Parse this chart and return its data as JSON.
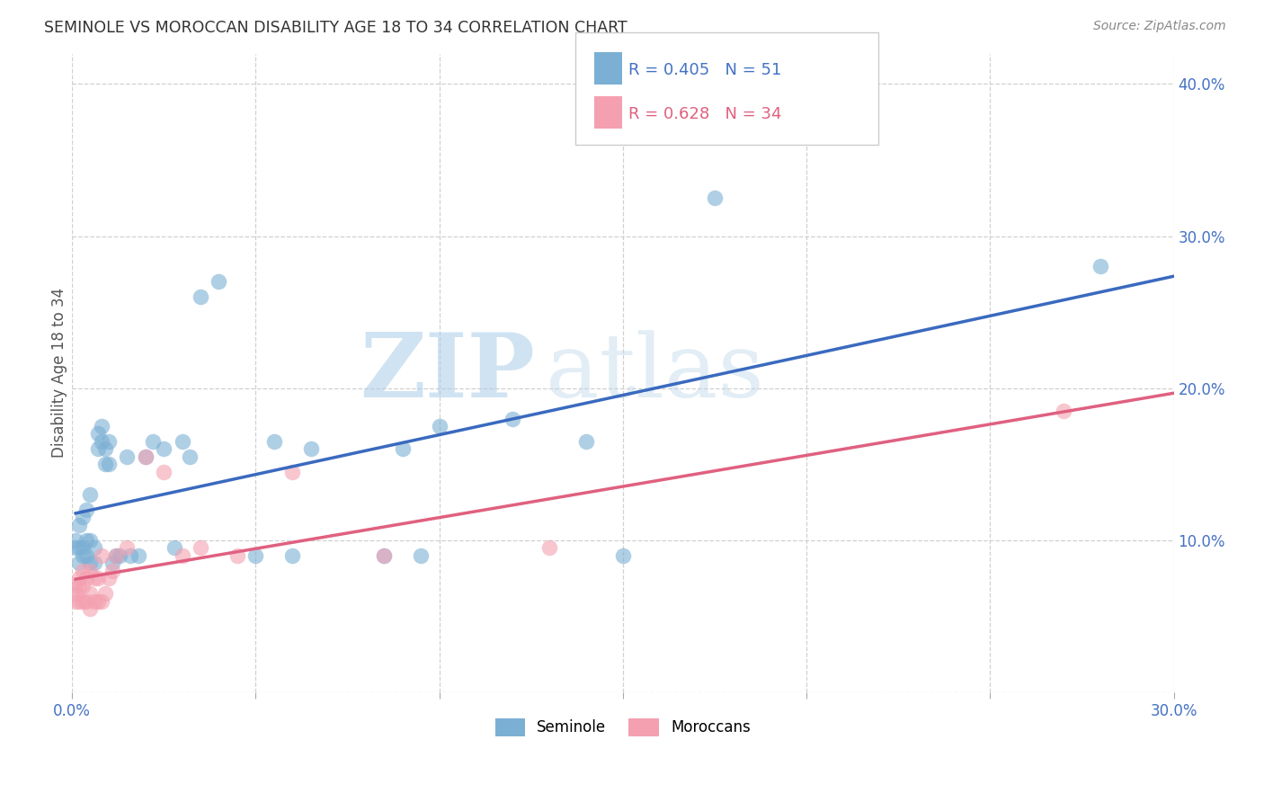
{
  "title": "SEMINOLE VS MOROCCAN DISABILITY AGE 18 TO 34 CORRELATION CHART",
  "source": "Source: ZipAtlas.com",
  "ylabel": "Disability Age 18 to 34",
  "xlim": [
    0.0,
    0.3
  ],
  "ylim": [
    0.0,
    0.42
  ],
  "xticks": [
    0.0,
    0.05,
    0.1,
    0.15,
    0.2,
    0.25,
    0.3
  ],
  "yticks": [
    0.0,
    0.1,
    0.2,
    0.3,
    0.4
  ],
  "xtick_labels": [
    "0.0%",
    "",
    "",
    "",
    "",
    "",
    "30.0%"
  ],
  "ytick_labels": [
    "",
    "10.0%",
    "20.0%",
    "30.0%",
    "40.0%"
  ],
  "seminole_color": "#7bafd4",
  "moroccan_color": "#f4a0b0",
  "seminole_line_color": "#3a6abf",
  "moroccan_line_color": "#e06080",
  "watermark_zip": "ZIP",
  "watermark_atlas": "atlas",
  "background_color": "#ffffff",
  "grid_color": "#d0d0d0",
  "legend_blue_text_color": "#4472c4",
  "legend_pink_text_color": "#e06080",
  "axis_text_color": "#4472c4",
  "seminole_x": [
    0.001,
    0.001,
    0.002,
    0.002,
    0.002,
    0.003,
    0.003,
    0.003,
    0.004,
    0.004,
    0.004,
    0.005,
    0.005,
    0.005,
    0.006,
    0.006,
    0.007,
    0.007,
    0.008,
    0.008,
    0.009,
    0.009,
    0.01,
    0.01,
    0.011,
    0.012,
    0.013,
    0.015,
    0.016,
    0.018,
    0.02,
    0.022,
    0.025,
    0.028,
    0.03,
    0.032,
    0.035,
    0.04,
    0.05,
    0.055,
    0.06,
    0.065,
    0.085,
    0.09,
    0.095,
    0.1,
    0.12,
    0.14,
    0.15,
    0.175,
    0.28
  ],
  "seminole_y": [
    0.095,
    0.1,
    0.085,
    0.095,
    0.11,
    0.09,
    0.095,
    0.115,
    0.09,
    0.1,
    0.12,
    0.085,
    0.1,
    0.13,
    0.085,
    0.095,
    0.16,
    0.17,
    0.165,
    0.175,
    0.15,
    0.16,
    0.15,
    0.165,
    0.085,
    0.09,
    0.09,
    0.155,
    0.09,
    0.09,
    0.155,
    0.165,
    0.16,
    0.095,
    0.165,
    0.155,
    0.26,
    0.27,
    0.09,
    0.165,
    0.09,
    0.16,
    0.09,
    0.16,
    0.09,
    0.175,
    0.18,
    0.165,
    0.09,
    0.325,
    0.28
  ],
  "moroccan_x": [
    0.001,
    0.001,
    0.001,
    0.002,
    0.002,
    0.002,
    0.003,
    0.003,
    0.003,
    0.004,
    0.004,
    0.005,
    0.005,
    0.005,
    0.006,
    0.006,
    0.007,
    0.007,
    0.008,
    0.008,
    0.009,
    0.01,
    0.011,
    0.012,
    0.015,
    0.02,
    0.025,
    0.03,
    0.035,
    0.045,
    0.06,
    0.085,
    0.13,
    0.27
  ],
  "moroccan_y": [
    0.06,
    0.065,
    0.07,
    0.06,
    0.07,
    0.075,
    0.06,
    0.07,
    0.08,
    0.06,
    0.075,
    0.055,
    0.065,
    0.08,
    0.06,
    0.075,
    0.06,
    0.075,
    0.06,
    0.09,
    0.065,
    0.075,
    0.08,
    0.09,
    0.095,
    0.155,
    0.145,
    0.09,
    0.095,
    0.09,
    0.145,
    0.09,
    0.095,
    0.185
  ]
}
